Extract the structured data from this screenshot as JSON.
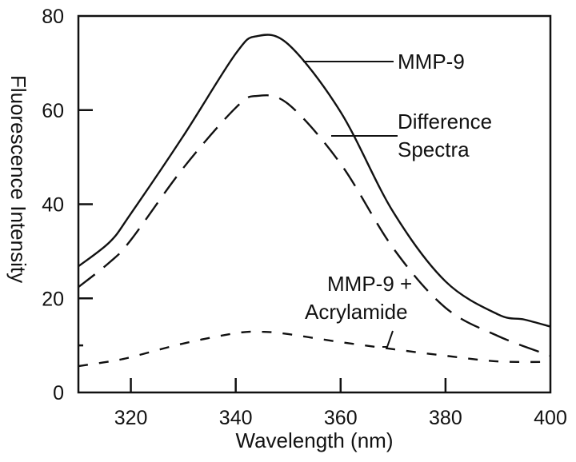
{
  "chart_data": {
    "type": "line",
    "title": "",
    "xlabel": "Wavelength (nm)",
    "ylabel": "Fluorescence Intensity",
    "xlim": [
      310,
      400
    ],
    "ylim": [
      0,
      80
    ],
    "xticks": [
      320,
      340,
      360,
      380,
      400
    ],
    "yticks": [
      0,
      20,
      40,
      60,
      80
    ],
    "xtick_labels": [
      "320",
      "340",
      "360",
      "380",
      "400"
    ],
    "ytick_labels": [
      "0",
      "20",
      "40",
      "60",
      "80"
    ],
    "grid": false,
    "legend": "inline annotations",
    "series": [
      {
        "name": "MMP-9",
        "style": "solid",
        "x": [
          310,
          316,
          320,
          330,
          340,
          344,
          350,
          360,
          370,
          380,
          390,
          395,
          400
        ],
        "y": [
          26.8,
          32,
          38,
          54.5,
          72,
          75.7,
          74,
          59.6,
          38.4,
          23.6,
          16.6,
          15.5,
          14
        ]
      },
      {
        "name": "Difference Spectra",
        "style": "dashed",
        "x": [
          310,
          316,
          320,
          330,
          340,
          344,
          350,
          360,
          370,
          380,
          390,
          400
        ],
        "y": [
          22.4,
          27.7,
          32.4,
          47.7,
          60.5,
          63,
          61.3,
          48.6,
          30.7,
          18,
          12,
          7.8
        ]
      },
      {
        "name": "MMP-9 + Acrylamide",
        "style": "short-dashed",
        "x": [
          310,
          316,
          320,
          330,
          340,
          345,
          350,
          360,
          370,
          380,
          390,
          400
        ],
        "y": [
          5.6,
          6.6,
          7.5,
          10.4,
          12.6,
          12.9,
          12.4,
          10.7,
          9.2,
          7.8,
          6.6,
          6.5
        ]
      }
    ],
    "annotations": [
      {
        "lines": [
          "MMP-9"
        ],
        "series": "MMP-9"
      },
      {
        "lines": [
          "Difference",
          "Spectra"
        ],
        "series": "Difference Spectra"
      },
      {
        "lines": [
          "MMP-9 +",
          "Acrylamide"
        ],
        "series": "MMP-9 + Acrylamide"
      }
    ]
  }
}
